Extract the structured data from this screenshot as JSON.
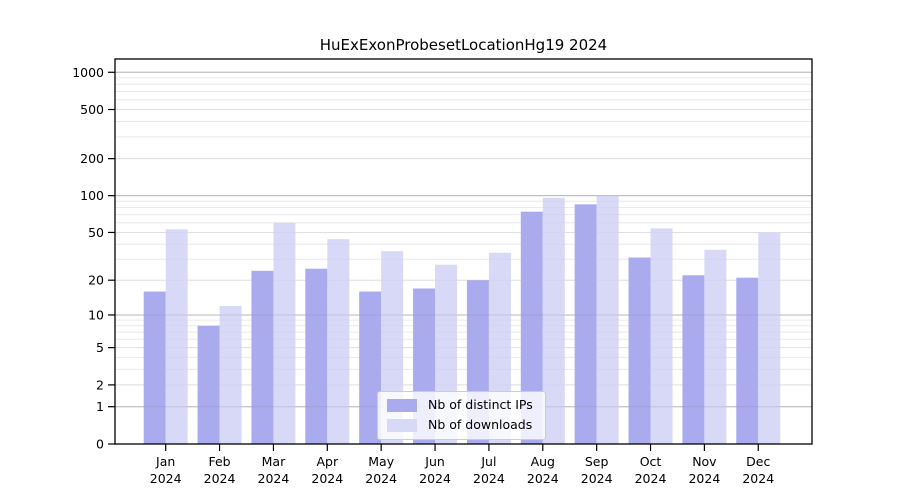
{
  "chart_data": {
    "type": "bar",
    "title": "HuExExonProbesetLocationHg19 2024",
    "categories": [
      "Jan 2024",
      "Feb 2024",
      "Mar 2024",
      "Apr 2024",
      "May 2024",
      "Jun 2024",
      "Jul 2024",
      "Aug 2024",
      "Sep 2024",
      "Oct 2024",
      "Nov 2024",
      "Dec 2024"
    ],
    "series": [
      {
        "name": "Nb of distinct IPs",
        "color": "#aaaaee",
        "values": [
          16,
          8,
          24,
          25,
          16,
          17,
          20,
          74,
          85,
          31,
          22,
          21
        ]
      },
      {
        "name": "Nb of downloads",
        "color": "#d8d8f7",
        "values": [
          53,
          12,
          60,
          44,
          35,
          27,
          34,
          96,
          100,
          54,
          36,
          50
        ]
      }
    ],
    "yticks": [
      0,
      1,
      2,
      5,
      10,
      20,
      50,
      100,
      200,
      500,
      1000
    ],
    "scale": "log1p",
    "ylim": [
      0,
      1280
    ],
    "xlabel": "",
    "ylabel": "",
    "grid": true,
    "legend": {
      "position": "bottom-center"
    }
  }
}
